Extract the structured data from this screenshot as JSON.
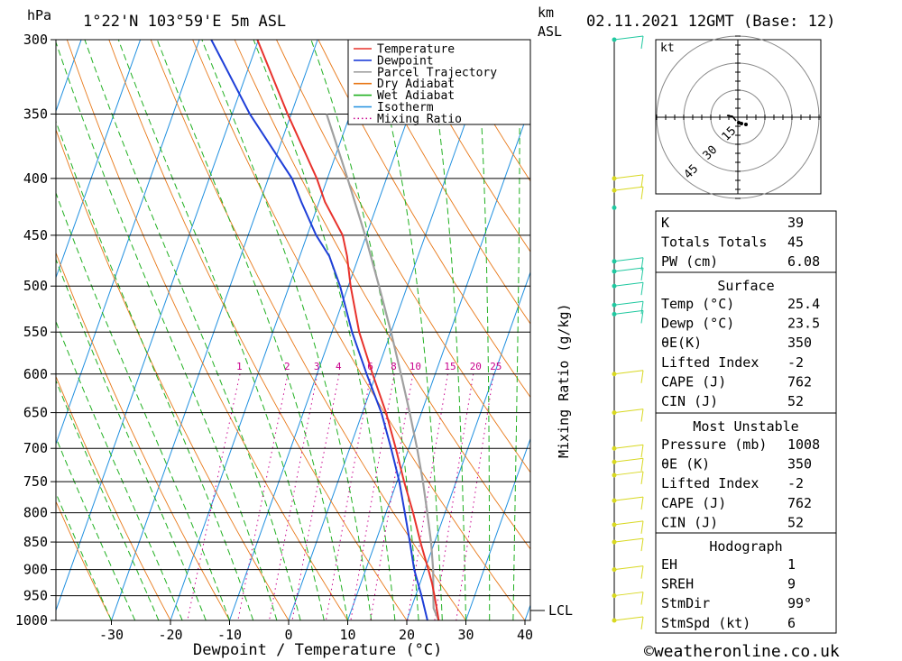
{
  "header": {
    "location": "1°22'N 103°59'E 5m ASL",
    "datetime": "02.11.2021 12GMT (Base: 12)",
    "pressure_unit": "hPa",
    "height_unit_1": "km",
    "height_unit_2": "ASL"
  },
  "chart_data": {
    "type": "line",
    "xlabel": "Dewpoint / Temperature (°C)",
    "ylabel": "hPa",
    "x_ticks": [
      -30,
      -20,
      -10,
      0,
      10,
      20,
      30,
      40
    ],
    "pressure_levels": [
      300,
      350,
      400,
      450,
      500,
      550,
      600,
      650,
      700,
      750,
      800,
      850,
      900,
      950,
      1000
    ],
    "pressure_range": [
      300,
      1000
    ],
    "mixing_ratio_axis_label": "Mixing Ratio (g/kg)",
    "mixing_ratio_values": [
      1,
      2,
      3,
      4,
      6,
      8,
      10,
      15,
      20,
      25
    ],
    "lcl_label": "LCL",
    "legend": [
      {
        "name": "Temperature",
        "color": "#e8322c",
        "style": "solid"
      },
      {
        "name": "Dewpoint",
        "color": "#1f3fd8",
        "style": "solid"
      },
      {
        "name": "Parcel Trajectory",
        "color": "#a0a0a0",
        "style": "solid"
      },
      {
        "name": "Dry Adiabat",
        "color": "#e87818",
        "style": "solid"
      },
      {
        "name": "Wet Adiabat",
        "color": "#20b020",
        "style": "solid"
      },
      {
        "name": "Isotherm",
        "color": "#2090e0",
        "style": "solid"
      },
      {
        "name": "Mixing Ratio",
        "color": "#c8008c",
        "style": "dotted"
      }
    ],
    "temperature": {
      "p": [
        1000,
        950,
        925,
        900,
        850,
        800,
        750,
        700,
        650,
        600,
        550,
        500,
        470,
        450,
        420,
        400,
        350,
        300
      ],
      "t": [
        25.4,
        23.2,
        22.0,
        20.6,
        17.6,
        14.6,
        11.2,
        7.8,
        4.0,
        -0.6,
        -5.4,
        -9.6,
        -12.0,
        -14.0,
        -19.0,
        -21.8,
        -30.6,
        -40.2
      ]
    },
    "dewpoint": {
      "p": [
        1000,
        950,
        900,
        850,
        800,
        750,
        700,
        650,
        600,
        550,
        500,
        470,
        450,
        420,
        400,
        350,
        300
      ],
      "t": [
        23.5,
        21.0,
        18.2,
        15.8,
        13.2,
        10.4,
        7.0,
        3.2,
        -1.6,
        -6.6,
        -11.4,
        -15.0,
        -18.5,
        -23.0,
        -26.0,
        -37.0,
        -48.0
      ]
    },
    "parcel": {
      "p": [
        1000,
        975,
        950,
        900,
        850,
        800,
        750,
        700,
        650,
        600,
        550,
        500,
        450,
        400,
        350
      ],
      "t": [
        25.4,
        23.8,
        23.0,
        21.4,
        19.4,
        17.0,
        14.4,
        11.4,
        8.0,
        4.2,
        0.0,
        -4.8,
        -10.2,
        -16.6,
        -24.0
      ]
    },
    "lcl_pressure": 970
  },
  "stability": {
    "rows": [
      {
        "label": "K",
        "value": "39"
      },
      {
        "label": "Totals Totals",
        "value": "45"
      },
      {
        "label": "PW (cm)",
        "value": "6.08"
      }
    ]
  },
  "surface": {
    "title": "Surface",
    "rows": [
      {
        "label": "Temp (°C)",
        "value": "25.4"
      },
      {
        "label": "Dewp (°C)",
        "value": "23.5"
      },
      {
        "label": "θE(K)",
        "value": "350"
      },
      {
        "label": "Lifted Index",
        "value": "-2"
      },
      {
        "label": "CAPE (J)",
        "value": "762"
      },
      {
        "label": "CIN (J)",
        "value": "52"
      }
    ]
  },
  "most_unstable": {
    "title": "Most Unstable",
    "rows": [
      {
        "label": "Pressure (mb)",
        "value": "1008"
      },
      {
        "label": "θE (K)",
        "value": "350"
      },
      {
        "label": "Lifted Index",
        "value": "-2"
      },
      {
        "label": "CAPE (J)",
        "value": "762"
      },
      {
        "label": "CIN (J)",
        "value": "52"
      }
    ]
  },
  "hodograph": {
    "title": "Hodograph",
    "unit_label": "kt",
    "ring_labels": [
      "15",
      "30",
      "45"
    ],
    "rows": [
      {
        "label": "EH",
        "value": "1"
      },
      {
        "label": "SREH",
        "value": "9"
      },
      {
        "label": "StmDir",
        "value": "99°"
      },
      {
        "label": "StmSpd (kt)",
        "value": "6"
      }
    ]
  },
  "copyright": "©weatheronline.co.uk",
  "colors": {
    "temperature": "#e8322c",
    "dewpoint": "#1f3fd8",
    "parcel": "#a0a0a0",
    "dry_adiabat": "#e87818",
    "wet_adiabat": "#20b020",
    "isotherm": "#2090e0",
    "mixing_ratio": "#c8008c",
    "wind_upper": "#20c8a0",
    "wind_lower": "#d8d820"
  }
}
